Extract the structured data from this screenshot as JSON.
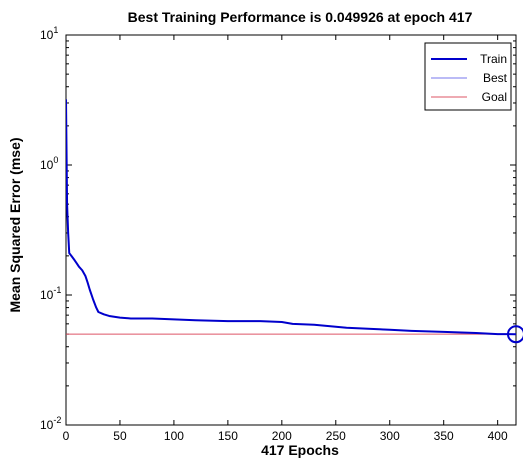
{
  "chart_data": {
    "type": "line",
    "title": "Best Training Performance is 0.049926 at epoch 417",
    "xlabel": "417 Epochs",
    "ylabel": "Mean Squared Error  (mse)",
    "xlim": [
      0,
      417
    ],
    "ylim": [
      0.01,
      10
    ],
    "yscale": "log",
    "x_ticks": [
      0,
      50,
      100,
      150,
      200,
      250,
      300,
      350,
      400
    ],
    "y_ticks": [
      0.01,
      0.1,
      1,
      10
    ],
    "y_tick_labels": [
      {
        "base": "10",
        "exp": "-2"
      },
      {
        "base": "10",
        "exp": "-1"
      },
      {
        "base": "10",
        "exp": "0"
      },
      {
        "base": "10",
        "exp": "1"
      }
    ],
    "legend_position": "top-right",
    "grid": false,
    "series": [
      {
        "name": "Train",
        "color": "#0000cc",
        "x": [
          0,
          1,
          2,
          3,
          5,
          8,
          10,
          12,
          15,
          18,
          20,
          22,
          25,
          28,
          30,
          35,
          40,
          50,
          60,
          70,
          80,
          100,
          120,
          150,
          180,
          200,
          210,
          230,
          250,
          260,
          280,
          300,
          320,
          350,
          380,
          400,
          417
        ],
        "y": [
          3.2,
          0.5,
          0.3,
          0.21,
          0.2,
          0.185,
          0.175,
          0.165,
          0.155,
          0.14,
          0.125,
          0.11,
          0.093,
          0.08,
          0.074,
          0.071,
          0.069,
          0.067,
          0.066,
          0.066,
          0.066,
          0.065,
          0.064,
          0.063,
          0.063,
          0.062,
          0.06,
          0.059,
          0.057,
          0.056,
          0.055,
          0.054,
          0.053,
          0.052,
          0.051,
          0.05,
          0.049926
        ]
      },
      {
        "name": "Best",
        "color": "#7777ee",
        "x": [
          417
        ],
        "y": [
          0.049926
        ]
      },
      {
        "name": "Goal",
        "color": "#dd5566",
        "x": [
          0,
          417
        ],
        "y": [
          0.05,
          0.05
        ]
      }
    ],
    "best_marker": {
      "x": 417,
      "y": 0.049926,
      "color": "#0000cc"
    }
  }
}
